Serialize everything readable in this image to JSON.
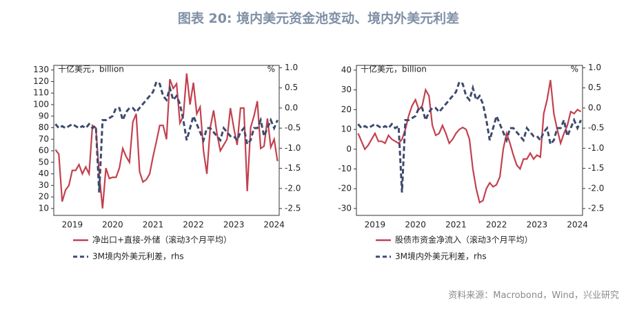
{
  "title": "图表 20: 境内美元资金池变动、境内外美元利差",
  "source": "资料来源：Macrobond，Wind，兴业研究",
  "chart_data": [
    {
      "type": "line",
      "y_label": "十亿美元，billion",
      "y2_label": "%",
      "categories": [
        null,
        null,
        null,
        null,
        null,
        "2019",
        null,
        null,
        null,
        null,
        null,
        null,
        null,
        null,
        null,
        null,
        null,
        "2020",
        null,
        null,
        null,
        null,
        null,
        null,
        null,
        null,
        null,
        null,
        null,
        "2021",
        null,
        null,
        null,
        null,
        null,
        null,
        null,
        null,
        null,
        null,
        null,
        "2022",
        null,
        null,
        null,
        null,
        null,
        null,
        null,
        null,
        null,
        null,
        null,
        "2023",
        null,
        null,
        null,
        null,
        null,
        null,
        null,
        null,
        null,
        null,
        null,
        "2024",
        null
      ],
      "ylim": [
        4,
        134
      ],
      "yticks": [
        10,
        20,
        30,
        40,
        50,
        60,
        70,
        80,
        90,
        100,
        110,
        120,
        130
      ],
      "y2lim": [
        -2.67,
        1.06
      ],
      "y2ticks": [
        {
          "value": 1,
          "label": "1.0"
        },
        0.5,
        {
          "value": 0,
          "label": "0.0"
        },
        -0.5,
        {
          "value": -1,
          "label": "-1.0"
        },
        -1.5,
        {
          "value": -2,
          "label": "-2.0"
        },
        -2.5
      ],
      "series": [
        {
          "name": "净出口+直接-外储（滚动3个月平均）",
          "color": "#c3404e",
          "style": "solid",
          "values": [
            61,
            57,
            16,
            26,
            30,
            43,
            43,
            48,
            40,
            46,
            40,
            82,
            80,
            40,
            10,
            45,
            36,
            37,
            37,
            45,
            62,
            55,
            50,
            85,
            92,
            42,
            33,
            35,
            40,
            55,
            68,
            82,
            82,
            70,
            122,
            114,
            118,
            84,
            90,
            127,
            100,
            119,
            92,
            98,
            60,
            40,
            80,
            95,
            75,
            60,
            65,
            70,
            97,
            80,
            65,
            97,
            97,
            25,
            80,
            90,
            103,
            62,
            64,
            88,
            63,
            70,
            51
          ]
        },
        {
          "name": "3M境内外美元利差，rhs",
          "color": "#3d4a6e",
          "style": "dashed",
          "axis": "y2",
          "values": [
            -0.4,
            -0.5,
            -0.45,
            -0.5,
            -0.45,
            -0.4,
            -0.45,
            -0.5,
            -0.45,
            -0.5,
            -0.4,
            -0.5,
            -0.45,
            -2.1,
            -0.3,
            -0.3,
            -0.25,
            -0.2,
            0,
            0,
            -0.3,
            -0.1,
            0,
            0,
            -0.1,
            0,
            0.1,
            0.2,
            0.3,
            0.4,
            0.65,
            0.6,
            0.3,
            0.2,
            0.5,
            0.2,
            0.3,
            0.1,
            -0.3,
            -0.8,
            -0.5,
            -0.2,
            -0.4,
            -0.6,
            -0.8,
            -0.5,
            -0.5,
            -0.6,
            -0.7,
            -0.8,
            -0.5,
            -0.6,
            -0.7,
            -0.7,
            -0.8,
            -0.6,
            -0.5,
            -0.9,
            -0.8,
            -0.5,
            -0.5,
            -0.3,
            -0.7,
            -0.5,
            -0.3,
            -0.5,
            -0.3
          ]
        }
      ]
    },
    {
      "type": "line",
      "y_label": "十亿美元，billion",
      "y2_label": "%",
      "categories": [
        null,
        null,
        null,
        null,
        null,
        "2019",
        null,
        null,
        null,
        null,
        null,
        null,
        null,
        null,
        null,
        null,
        null,
        "2020",
        null,
        null,
        null,
        null,
        null,
        null,
        null,
        null,
        null,
        null,
        null,
        "2021",
        null,
        null,
        null,
        null,
        null,
        null,
        null,
        null,
        null,
        null,
        null,
        "2022",
        null,
        null,
        null,
        null,
        null,
        null,
        null,
        null,
        null,
        null,
        null,
        "2023",
        null,
        null,
        null,
        null,
        null,
        null,
        null,
        null,
        null,
        null,
        null,
        "2024",
        null
      ],
      "ylim": [
        -33.5,
        42.4
      ],
      "yticks": [
        -30,
        -20,
        -10,
        0,
        10,
        20,
        30,
        40
      ],
      "y2lim": [
        -2.67,
        1.06
      ],
      "y2ticks": [
        {
          "value": 1,
          "label": "1.0"
        },
        0.5,
        {
          "value": 0,
          "label": "0.0"
        },
        -0.5,
        {
          "value": -1,
          "label": "-1.0"
        },
        -1.5,
        {
          "value": -2,
          "label": "-2.0"
        },
        -2.5
      ],
      "series": [
        {
          "name": "股债市资金净流入（滚动3个月平均）",
          "color": "#c3404e",
          "style": "solid",
          "values": [
            8,
            4,
            0,
            2,
            5,
            8,
            4,
            4,
            3,
            7,
            5,
            4,
            3,
            5,
            10,
            17,
            22,
            25,
            20,
            22,
            30,
            27,
            12,
            7,
            8,
            12,
            8,
            3,
            5,
            8,
            10,
            11,
            10,
            5,
            -10,
            -20,
            -27,
            -26,
            -20,
            -17,
            -19,
            -18,
            -14,
            0,
            8,
            3,
            -3,
            -8,
            -10,
            -5,
            -5,
            -2,
            -5,
            -3,
            -4,
            18,
            25,
            35,
            18,
            10,
            3,
            8,
            12,
            19,
            18,
            20,
            19
          ]
        },
        {
          "name": "3M境内外美元利差，rhs",
          "color": "#3d4a6e",
          "style": "dashed",
          "axis": "y2",
          "values": [
            -0.4,
            -0.5,
            -0.45,
            -0.5,
            -0.45,
            -0.4,
            -0.45,
            -0.5,
            -0.45,
            -0.5,
            -0.4,
            -0.5,
            -0.45,
            -2.1,
            -0.3,
            -0.3,
            -0.25,
            -0.2,
            0,
            0,
            -0.3,
            -0.1,
            0,
            0,
            -0.1,
            0,
            0.1,
            0.2,
            0.3,
            0.4,
            0.65,
            0.6,
            0.3,
            0.2,
            0.5,
            0.2,
            0.3,
            0.1,
            -0.3,
            -0.8,
            -0.5,
            -0.2,
            -0.4,
            -0.6,
            -0.8,
            -0.5,
            -0.5,
            -0.6,
            -0.7,
            -0.8,
            -0.5,
            -0.6,
            -0.7,
            -0.7,
            -0.8,
            -0.6,
            -0.5,
            -0.9,
            -0.8,
            -0.5,
            -0.5,
            -0.3,
            -0.7,
            -0.5,
            -0.3,
            -0.5,
            -0.3
          ]
        }
      ]
    }
  ]
}
